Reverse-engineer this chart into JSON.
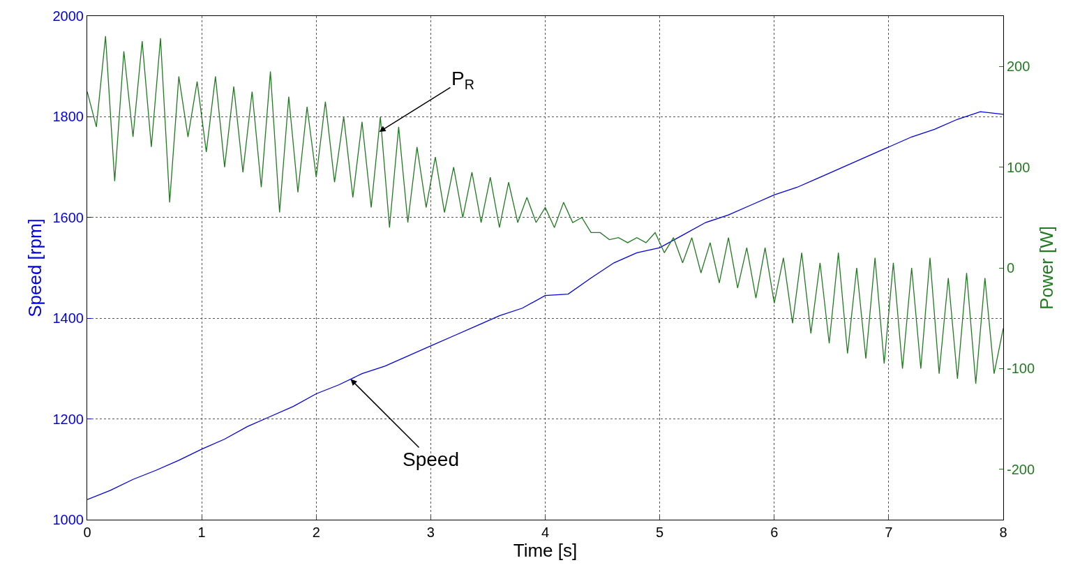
{
  "chart_data": {
    "type": "line",
    "xlabel": "Time [s]",
    "ylabel": "Speed [rpm]",
    "y2label": "Power [W]",
    "xlim": [
      0,
      8
    ],
    "xticks": [
      0,
      1,
      2,
      3,
      4,
      5,
      6,
      7,
      8
    ],
    "ylim": [
      1000,
      2000
    ],
    "yticks": [
      1000,
      1200,
      1400,
      1600,
      1800,
      2000
    ],
    "y2lim": [
      -250,
      250
    ],
    "y2ticks": [
      -200,
      -100,
      0,
      100,
      200
    ],
    "grid": true,
    "legend": false,
    "marker": "none",
    "line_style": "solid",
    "series": [
      {
        "color": "#0000e0",
        "x": [
          0,
          0.2,
          0.4,
          0.6,
          0.8,
          1.0,
          1.2,
          1.4,
          1.6,
          1.8,
          2.0,
          2.2,
          2.4,
          2.6,
          2.8,
          3.0,
          3.2,
          3.4,
          3.6,
          3.8,
          4.0,
          4.2,
          4.4,
          4.6,
          4.8,
          5.0,
          5.2,
          5.4,
          5.6,
          5.8,
          6.0,
          6.2,
          6.4,
          6.6,
          6.8,
          7.0,
          7.2,
          7.4,
          7.6,
          7.8,
          8.0
        ],
        "values": [
          1040,
          1058,
          1080,
          1098,
          1118,
          1140,
          1160,
          1185,
          1205,
          1225,
          1250,
          1268,
          1290,
          1305,
          1325,
          1345,
          1365,
          1385,
          1405,
          1420,
          1445,
          1448,
          1480,
          1510,
          1530,
          1540,
          1565,
          1590,
          1605,
          1625,
          1645,
          1660,
          1680,
          1700,
          1720,
          1740,
          1760,
          1775,
          1795,
          1810,
          1805
        ]
      },
      {
        "color": "#217a21",
        "axis": "y2",
        "x": [
          0,
          0.08,
          0.16,
          0.24,
          0.32,
          0.4,
          0.48,
          0.56,
          0.64,
          0.72,
          0.8,
          0.88,
          0.96,
          1.04,
          1.12,
          1.2,
          1.28,
          1.36,
          1.44,
          1.52,
          1.6,
          1.68,
          1.76,
          1.84,
          1.92,
          2.0,
          2.08,
          2.16,
          2.24,
          2.32,
          2.4,
          2.48,
          2.56,
          2.64,
          2.72,
          2.8,
          2.88,
          2.96,
          3.04,
          3.12,
          3.2,
          3.28,
          3.36,
          3.44,
          3.52,
          3.6,
          3.68,
          3.76,
          3.84,
          3.92,
          4.0,
          4.08,
          4.16,
          4.24,
          4.32,
          4.4,
          4.48,
          4.56,
          4.64,
          4.72,
          4.8,
          4.88,
          4.96,
          5.04,
          5.12,
          5.2,
          5.28,
          5.36,
          5.44,
          5.52,
          5.6,
          5.68,
          5.76,
          5.84,
          5.92,
          6.0,
          6.08,
          6.16,
          6.24,
          6.32,
          6.4,
          6.48,
          6.56,
          6.64,
          6.72,
          6.8,
          6.88,
          6.96,
          7.04,
          7.12,
          7.2,
          7.28,
          7.36,
          7.44,
          7.52,
          7.6,
          7.68,
          7.76,
          7.84,
          7.92,
          8.0
        ],
        "values": [
          175,
          140,
          230,
          86,
          215,
          130,
          225,
          120,
          228,
          65,
          190,
          130,
          185,
          115,
          190,
          100,
          180,
          95,
          175,
          80,
          195,
          55,
          170,
          75,
          160,
          90,
          165,
          85,
          150,
          70,
          145,
          60,
          150,
          40,
          140,
          45,
          120,
          60,
          110,
          55,
          100,
          50,
          95,
          45,
          90,
          40,
          85,
          45,
          70,
          45,
          60,
          40,
          65,
          45,
          50,
          35,
          35,
          28,
          30,
          25,
          30,
          25,
          35,
          15,
          30,
          5,
          30,
          -5,
          25,
          -15,
          30,
          -20,
          20,
          -30,
          20,
          -35,
          10,
          -55,
          15,
          -65,
          5,
          -75,
          15,
          -85,
          0,
          -90,
          10,
          -95,
          5,
          -100,
          0,
          -100,
          10,
          -105,
          -10,
          -110,
          -5,
          -115,
          -10,
          -105,
          -60
        ]
      }
    ],
    "annotations": [
      {
        "text": "P$_{R}$",
        "x": 2.55,
        "y": 1770
      },
      {
        "text": "Speed",
        "x": 2.3,
        "y": 1279
      }
    ]
  }
}
